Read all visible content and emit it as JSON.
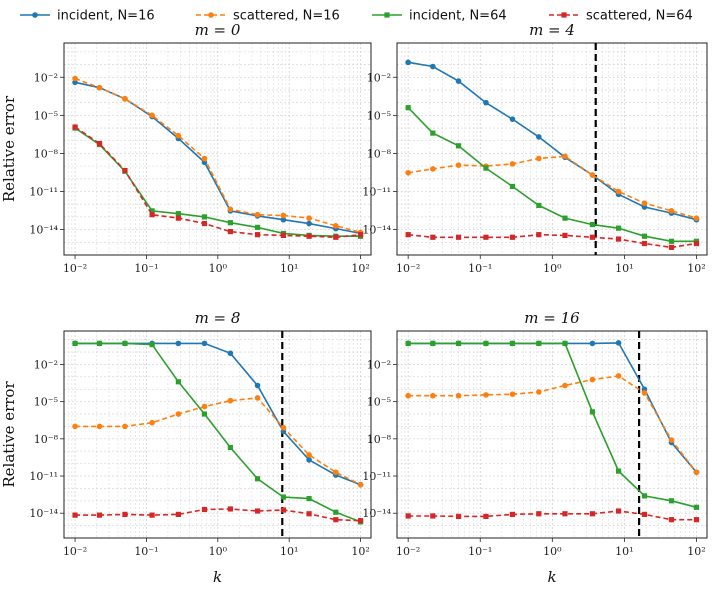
{
  "chart_data": {
    "type": "line",
    "xscale": "log",
    "yscale": "log",
    "xlabel": "k",
    "ylabel": "Relative error",
    "xlim": [
      0.007,
      140
    ],
    "ylim": [
      1e-16,
      5
    ],
    "x": [
      0.01,
      0.022,
      0.05,
      0.12,
      0.28,
      0.65,
      1.5,
      3.6,
      8.3,
      19,
      45,
      100
    ],
    "xtick_values": [
      0.01,
      0.1,
      1,
      10,
      100
    ],
    "xtick_labels": [
      "10⁻²",
      "10⁻¹",
      "10⁰",
      "10¹",
      "10²"
    ],
    "ytick_values": [
      1e-14,
      1e-11,
      1e-08,
      1e-05,
      0.01
    ],
    "ytick_labels": [
      "10⁻¹⁴",
      "10⁻¹¹",
      "10⁻⁸",
      "10⁻⁵",
      "10⁻²"
    ],
    "legend": {
      "placement": "top",
      "entries": [
        "incident, N=16",
        "scattered, N=16",
        "incident, N=64",
        "scattered, N=64"
      ]
    },
    "series_styles": [
      {
        "name": "incident, N=16",
        "color": "#1f77b4",
        "dash": "solid",
        "marker": "circle"
      },
      {
        "name": "scattered, N=16",
        "color": "#ff7f0e",
        "dash": "dashed",
        "marker": "circle"
      },
      {
        "name": "incident, N=64",
        "color": "#2ca02c",
        "dash": "solid",
        "marker": "square"
      },
      {
        "name": "scattered, N=64",
        "color": "#d62728",
        "dash": "dashed",
        "marker": "square"
      }
    ],
    "panels": [
      {
        "title": "m = 0",
        "vline": null,
        "series": [
          {
            "name": "incident, N=16",
            "values": [
              0.004,
              0.0015,
              0.0002,
              8e-06,
              1.5e-07,
              2e-09,
              3e-13,
              1.2e-13,
              6e-14,
              3e-14,
              1.2e-14,
              5e-15
            ]
          },
          {
            "name": "scattered, N=16",
            "values": [
              0.008,
              0.0015,
              0.0002,
              1e-05,
              2.5e-07,
              4e-09,
              4e-13,
              1.5e-13,
              1.3e-13,
              8e-14,
              2e-14,
              6e-15
            ]
          },
          {
            "name": "incident, N=64",
            "values": [
              1e-06,
              5e-08,
              4e-10,
              3e-13,
              1.8e-13,
              1e-13,
              3.5e-14,
              1.5e-14,
              5e-15,
              3.5e-15,
              3e-15,
              3e-15
            ]
          },
          {
            "name": "scattered, N=64",
            "values": [
              1.2e-06,
              6e-08,
              4.5e-10,
              1.5e-13,
              8e-14,
              3e-14,
              7e-15,
              4e-15,
              3.5e-15,
              3e-15,
              2.5e-15,
              4e-15
            ]
          }
        ]
      },
      {
        "title": "m = 4",
        "vline": 4,
        "series": [
          {
            "name": "incident, N=16",
            "values": [
              0.15,
              0.07,
              0.005,
              0.0001,
              5e-06,
              2e-07,
              5e-09,
              2e-10,
              6e-12,
              6e-13,
              2e-13,
              6e-14
            ]
          },
          {
            "name": "scattered, N=16",
            "values": [
              3e-10,
              6e-10,
              1.2e-09,
              1e-09,
              1.5e-09,
              4e-09,
              6e-09,
              2e-10,
              1e-11,
              1.2e-12,
              3e-13,
              8e-14
            ]
          },
          {
            "name": "incident, N=64",
            "values": [
              4e-05,
              4e-07,
              4e-08,
              7e-10,
              2.5e-11,
              8e-13,
              8e-14,
              2.5e-14,
              1.3e-14,
              3e-15,
              1.2e-15,
              1.2e-15
            ]
          },
          {
            "name": "scattered, N=64",
            "values": [
              4e-15,
              2.5e-15,
              2.5e-15,
              2.5e-15,
              2.5e-15,
              4e-15,
              3.5e-15,
              2.5e-15,
              1.8e-15,
              8e-16,
              4e-16,
              8e-16
            ]
          }
        ]
      },
      {
        "title": "m = 8",
        "vline": 8,
        "series": [
          {
            "name": "incident, N=16",
            "values": [
              0.5,
              0.5,
              0.5,
              0.5,
              0.5,
              0.5,
              0.08,
              0.0002,
              4e-08,
              2e-10,
              1.2e-11,
              2e-12
            ]
          },
          {
            "name": "scattered, N=16",
            "values": [
              1e-07,
              1e-07,
              1e-07,
              2e-07,
              1e-06,
              4e-06,
              1.2e-05,
              2e-05,
              8e-08,
              5e-10,
              2e-11,
              2e-12
            ]
          },
          {
            "name": "incident, N=64",
            "values": [
              0.5,
              0.5,
              0.5,
              0.4,
              0.0004,
              1e-06,
              2e-09,
              6e-12,
              2e-13,
              1.5e-13,
              1.2e-14,
              2e-15
            ]
          },
          {
            "name": "scattered, N=64",
            "values": [
              7e-15,
              7e-15,
              8e-15,
              7e-15,
              8e-15,
              2e-14,
              2.2e-14,
              1.5e-14,
              1.8e-14,
              9e-15,
              3e-15,
              2.5e-15
            ]
          }
        ]
      },
      {
        "title": "m = 16",
        "vline": 16,
        "series": [
          {
            "name": "incident, N=16",
            "values": [
              0.5,
              0.5,
              0.5,
              0.5,
              0.5,
              0.5,
              0.5,
              0.5,
              0.55,
              0.0001,
              5e-09,
              2e-11
            ]
          },
          {
            "name": "scattered, N=16",
            "values": [
              3e-05,
              3e-05,
              3e-05,
              3.5e-05,
              4e-05,
              6e-05,
              0.0002,
              0.0006,
              0.0012,
              5e-05,
              8e-09,
              2e-11
            ]
          },
          {
            "name": "incident, N=64",
            "values": [
              0.5,
              0.5,
              0.5,
              0.5,
              0.5,
              0.5,
              0.5,
              1.5e-06,
              2.5e-11,
              2.5e-13,
              1e-13,
              3e-14
            ]
          },
          {
            "name": "scattered, N=64",
            "values": [
              6e-15,
              6e-15,
              5.5e-15,
              5.5e-15,
              8e-15,
              9e-15,
              9e-15,
              9e-15,
              1.5e-14,
              8e-15,
              3e-15,
              3e-15
            ]
          }
        ]
      }
    ]
  }
}
